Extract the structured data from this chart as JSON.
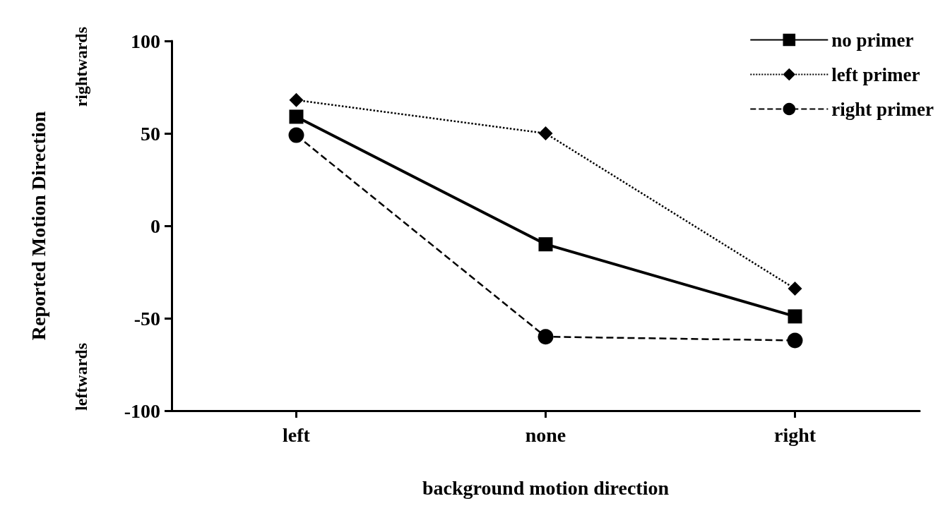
{
  "chart_data": {
    "type": "line",
    "xlabel": "background motion direction",
    "ylabel": "Reported Motion Direction",
    "annotations": [
      "rightwards",
      "leftwards"
    ],
    "categories": [
      "left",
      "none",
      "right"
    ],
    "series": [
      {
        "name": "no primer",
        "color": "#000000",
        "marker": "square",
        "line_style": "solid",
        "values": [
          59,
          -10,
          -49
        ]
      },
      {
        "name": "left primer",
        "color": "#000000",
        "marker": "diamond",
        "line_style": "dotted",
        "values": [
          68,
          50,
          -34
        ]
      },
      {
        "name": "right primer",
        "color": "#000000",
        "marker": "circle",
        "line_style": "dashed",
        "values": [
          49,
          -60,
          -62
        ]
      }
    ],
    "ylim": [
      -100,
      100
    ],
    "yticks": [
      -100,
      -50,
      0,
      50,
      100
    ],
    "grid": false,
    "legend": "top right"
  }
}
